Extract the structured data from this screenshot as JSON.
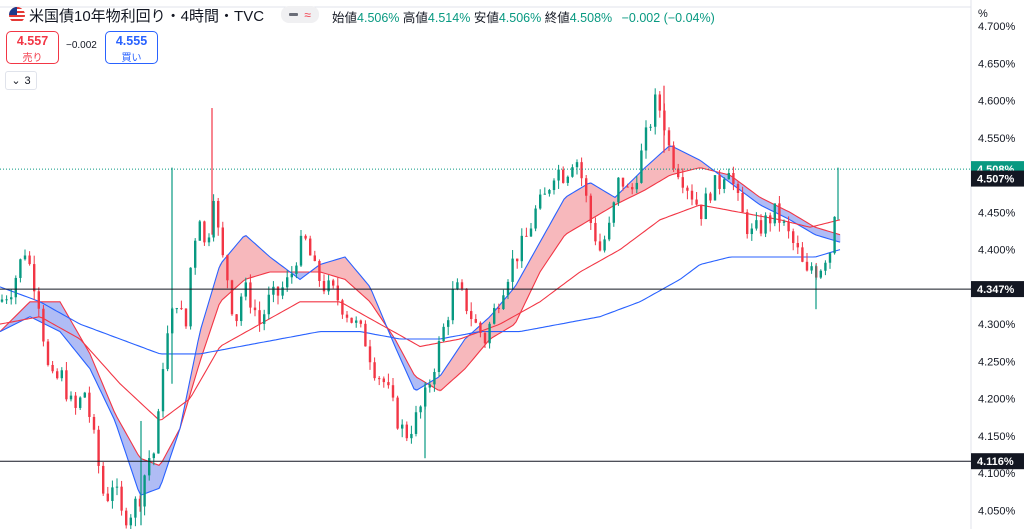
{
  "header": {
    "title": "米国債10年物利回り・4時間・TVC",
    "ohlc": {
      "open_label": "始値",
      "open": "4.506%",
      "high_label": "高値",
      "high": "4.514%",
      "low_label": "安値",
      "low": "4.506%",
      "close_label": "終値",
      "close": "4.508%",
      "change": "−0.002 (−0.04%)"
    },
    "pill_icon": "wave-icon"
  },
  "trade": {
    "sell_price": "4.557",
    "sell_label": "売り",
    "spread": "−0.002",
    "buy_price": "4.555",
    "buy_label": "買い"
  },
  "indicator_toggle": {
    "count": "3"
  },
  "axis_unit": "%",
  "colors": {
    "up": "#089981",
    "down": "#f23645",
    "ma_red": "#f23645",
    "ma_blue": "#2962ff",
    "cloud_red": "#f7b3b8",
    "cloud_blue": "#aab8f5"
  },
  "chart_data": {
    "type": "candlestick",
    "ylim": [
      4.025,
      4.735
    ],
    "y_ticks": [
      "4.700%",
      "4.650%",
      "4.600%",
      "4.550%",
      "4.500%",
      "4.450%",
      "4.400%",
      "4.350%",
      "4.300%",
      "4.250%",
      "4.200%",
      "4.150%",
      "4.100%",
      "4.050%"
    ],
    "y_tick_values": [
      4.7,
      4.65,
      4.6,
      4.55,
      4.5,
      4.45,
      4.4,
      4.35,
      4.3,
      4.25,
      4.2,
      4.15,
      4.1,
      4.05
    ],
    "horizontal_lines": [
      {
        "value": 4.347,
        "label": "4.347%",
        "style": "solid"
      },
      {
        "value": 4.116,
        "label": "4.116%",
        "style": "solid"
      },
      {
        "value": 4.508,
        "label": "4.508%",
        "style": "dotted",
        "role": "last-price"
      }
    ],
    "second_price_label": {
      "value": 4.498,
      "label": "4.507%"
    },
    "close_path": [
      [
        0,
        4.33
      ],
      [
        12,
        4.35
      ],
      [
        25,
        4.4
      ],
      [
        38,
        4.34
      ],
      [
        50,
        4.22
      ],
      [
        62,
        4.23
      ],
      [
        74,
        4.18
      ],
      [
        85,
        4.21
      ],
      [
        96,
        4.13
      ],
      [
        105,
        4.06
      ],
      [
        113,
        4.09
      ],
      [
        122,
        4.04
      ],
      [
        132,
        4.05
      ],
      [
        140,
        4.07
      ],
      [
        148,
        4.12
      ],
      [
        156,
        4.13
      ],
      [
        163,
        4.25
      ],
      [
        170,
        4.3
      ],
      [
        178,
        4.34
      ],
      [
        185,
        4.28
      ],
      [
        192,
        4.4
      ],
      [
        200,
        4.45
      ],
      [
        207,
        4.38
      ],
      [
        212,
        4.5
      ],
      [
        220,
        4.4
      ],
      [
        228,
        4.36
      ],
      [
        235,
        4.3
      ],
      [
        243,
        4.35
      ],
      [
        252,
        4.33
      ],
      [
        260,
        4.3
      ],
      [
        268,
        4.33
      ],
      [
        278,
        4.34
      ],
      [
        290,
        4.36
      ],
      [
        298,
        4.4
      ],
      [
        306,
        4.41
      ],
      [
        315,
        4.37
      ],
      [
        325,
        4.35
      ],
      [
        335,
        4.34
      ],
      [
        345,
        4.32
      ],
      [
        355,
        4.3
      ],
      [
        365,
        4.28
      ],
      [
        375,
        4.24
      ],
      [
        385,
        4.22
      ],
      [
        395,
        4.18
      ],
      [
        405,
        4.15
      ],
      [
        415,
        4.17
      ],
      [
        425,
        4.2
      ],
      [
        435,
        4.25
      ],
      [
        445,
        4.3
      ],
      [
        455,
        4.35
      ],
      [
        465,
        4.33
      ],
      [
        475,
        4.3
      ],
      [
        485,
        4.28
      ],
      [
        495,
        4.32
      ],
      [
        505,
        4.36
      ],
      [
        515,
        4.39
      ],
      [
        525,
        4.41
      ],
      [
        535,
        4.45
      ],
      [
        545,
        4.47
      ],
      [
        555,
        4.51
      ],
      [
        565,
        4.5
      ],
      [
        575,
        4.53
      ],
      [
        583,
        4.49
      ],
      [
        590,
        4.44
      ],
      [
        600,
        4.4
      ],
      [
        610,
        4.43
      ],
      [
        620,
        4.5
      ],
      [
        630,
        4.47
      ],
      [
        640,
        4.52
      ],
      [
        648,
        4.56
      ],
      [
        656,
        4.6
      ],
      [
        663,
        4.58
      ],
      [
        670,
        4.53
      ],
      [
        678,
        4.51
      ],
      [
        686,
        4.49
      ],
      [
        694,
        4.47
      ],
      [
        702,
        4.45
      ],
      [
        710,
        4.48
      ],
      [
        720,
        4.49
      ],
      [
        728,
        4.52
      ],
      [
        736,
        4.47
      ],
      [
        744,
        4.44
      ],
      [
        752,
        4.42
      ],
      [
        760,
        4.43
      ],
      [
        768,
        4.44
      ],
      [
        776,
        4.45
      ],
      [
        784,
        4.43
      ],
      [
        792,
        4.41
      ],
      [
        800,
        4.39
      ],
      [
        806,
        4.36
      ],
      [
        812,
        4.38
      ],
      [
        818,
        4.37
      ],
      [
        824,
        4.39
      ],
      [
        830,
        4.4
      ],
      [
        836,
        4.47
      ],
      [
        840,
        4.508
      ]
    ],
    "spikes": [
      {
        "x": 212,
        "high": 4.59,
        "low": 4.42
      },
      {
        "x": 172,
        "high": 4.51,
        "low": 4.22
      },
      {
        "x": 141,
        "high": 4.17,
        "low": 4.03
      },
      {
        "x": 425,
        "high": 4.22,
        "low": 4.12
      },
      {
        "x": 664,
        "high": 4.62,
        "low": 4.53
      },
      {
        "x": 816,
        "high": 4.38,
        "low": 4.32
      },
      {
        "x": 838,
        "high": 4.51,
        "low": 4.44
      }
    ],
    "ma_fast": [
      [
        0,
        4.29
      ],
      [
        30,
        4.33
      ],
      [
        60,
        4.33
      ],
      [
        90,
        4.26
      ],
      [
        115,
        4.18
      ],
      [
        140,
        4.12
      ],
      [
        160,
        4.11
      ],
      [
        180,
        4.16
      ],
      [
        200,
        4.25
      ],
      [
        220,
        4.33
      ],
      [
        245,
        4.36
      ],
      [
        270,
        4.37
      ],
      [
        300,
        4.37
      ],
      [
        320,
        4.37
      ],
      [
        345,
        4.36
      ],
      [
        370,
        4.33
      ],
      [
        395,
        4.28
      ],
      [
        415,
        4.23
      ],
      [
        440,
        4.21
      ],
      [
        465,
        4.24
      ],
      [
        490,
        4.28
      ],
      [
        515,
        4.3
      ],
      [
        540,
        4.37
      ],
      [
        565,
        4.42
      ],
      [
        590,
        4.44
      ],
      [
        615,
        4.46
      ],
      [
        645,
        4.48
      ],
      [
        670,
        4.5
      ],
      [
        700,
        4.51
      ],
      [
        730,
        4.5
      ],
      [
        760,
        4.47
      ],
      [
        790,
        4.45
      ],
      [
        815,
        4.43
      ],
      [
        840,
        4.42
      ]
    ],
    "ma_slow": [
      [
        0,
        4.29
      ],
      [
        30,
        4.31
      ],
      [
        60,
        4.29
      ],
      [
        90,
        4.24
      ],
      [
        115,
        4.17
      ],
      [
        140,
        4.07
      ],
      [
        160,
        4.08
      ],
      [
        180,
        4.16
      ],
      [
        200,
        4.29
      ],
      [
        220,
        4.38
      ],
      [
        245,
        4.42
      ],
      [
        270,
        4.39
      ],
      [
        300,
        4.36
      ],
      [
        320,
        4.38
      ],
      [
        345,
        4.39
      ],
      [
        370,
        4.35
      ],
      [
        395,
        4.27
      ],
      [
        415,
        4.21
      ],
      [
        440,
        4.23
      ],
      [
        465,
        4.28
      ],
      [
        490,
        4.31
      ],
      [
        515,
        4.35
      ],
      [
        540,
        4.41
      ],
      [
        565,
        4.47
      ],
      [
        590,
        4.49
      ],
      [
        615,
        4.47
      ],
      [
        645,
        4.51
      ],
      [
        670,
        4.54
      ],
      [
        700,
        4.52
      ],
      [
        730,
        4.49
      ],
      [
        760,
        4.46
      ],
      [
        790,
        4.44
      ],
      [
        815,
        4.42
      ],
      [
        840,
        4.41
      ]
    ],
    "ma_red_line": [
      [
        0,
        4.3
      ],
      [
        40,
        4.31
      ],
      [
        80,
        4.28
      ],
      [
        120,
        4.22
      ],
      [
        160,
        4.17
      ],
      [
        190,
        4.2
      ],
      [
        220,
        4.27
      ],
      [
        260,
        4.3
      ],
      [
        300,
        4.33
      ],
      [
        340,
        4.33
      ],
      [
        380,
        4.3
      ],
      [
        420,
        4.27
      ],
      [
        460,
        4.28
      ],
      [
        500,
        4.3
      ],
      [
        540,
        4.33
      ],
      [
        580,
        4.37
      ],
      [
        620,
        4.4
      ],
      [
        660,
        4.44
      ],
      [
        700,
        4.46
      ],
      [
        740,
        4.45
      ],
      [
        780,
        4.44
      ],
      [
        810,
        4.43
      ],
      [
        840,
        4.44
      ]
    ],
    "ma_blue_long": [
      [
        0,
        4.35
      ],
      [
        40,
        4.33
      ],
      [
        80,
        4.3
      ],
      [
        120,
        4.28
      ],
      [
        160,
        4.26
      ],
      [
        200,
        4.26
      ],
      [
        240,
        4.27
      ],
      [
        280,
        4.28
      ],
      [
        320,
        4.29
      ],
      [
        360,
        4.29
      ],
      [
        400,
        4.28
      ],
      [
        440,
        4.28
      ],
      [
        480,
        4.29
      ],
      [
        520,
        4.29
      ],
      [
        560,
        4.3
      ],
      [
        600,
        4.31
      ],
      [
        640,
        4.33
      ],
      [
        680,
        4.36
      ],
      [
        700,
        4.38
      ],
      [
        730,
        4.39
      ],
      [
        760,
        4.39
      ],
      [
        790,
        4.39
      ],
      [
        815,
        4.39
      ],
      [
        840,
        4.4
      ]
    ]
  }
}
